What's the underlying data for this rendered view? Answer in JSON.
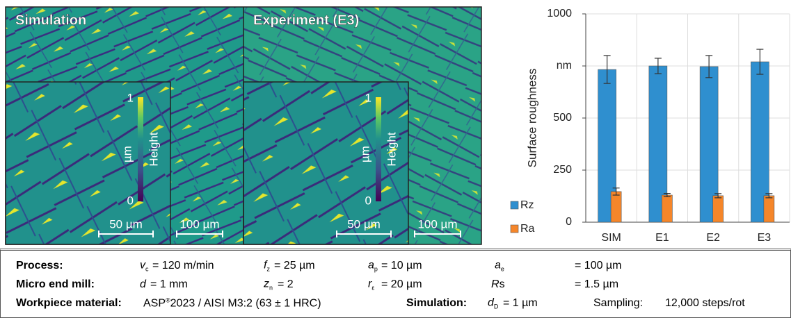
{
  "panels": [
    {
      "title": "Simulation",
      "colorbar_max": "1",
      "colorbar_min": "0",
      "colorbar_unit": "µm",
      "colorbar_label": "Height",
      "scalebar_inset": "50 µm",
      "scalebar_full": "100 µm"
    },
    {
      "title": "Experiment (E3)",
      "colorbar_max": "1",
      "colorbar_min": "0",
      "colorbar_unit": "µm",
      "colorbar_label": "Height",
      "scalebar_inset": "50 µm",
      "scalebar_full": "100 µm"
    }
  ],
  "chart_data": {
    "type": "bar",
    "y_label": "Surface roughness",
    "categories": [
      "SIM",
      "E1",
      "E2",
      "E3"
    ],
    "series": [
      {
        "name": "Rz",
        "color": "#2f8fcf",
        "values": [
          733,
          750,
          747,
          770
        ],
        "errors": [
          67,
          37,
          53,
          60
        ]
      },
      {
        "name": "Ra",
        "color": "#f5862a",
        "values": [
          147,
          130,
          127,
          127
        ],
        "errors": [
          17,
          8,
          10,
          10
        ]
      }
    ],
    "ylim": [
      0,
      1000
    ],
    "yticks": [
      0,
      250,
      500,
      {
        "value": 750,
        "label": "nm"
      },
      1000
    ],
    "grid": true,
    "legend": "bottom-left"
  },
  "table": {
    "rows": [
      [
        {
          "text": "Process:"
        },
        {
          "sym": "v",
          "sub": "c",
          "text": "= 120 m/min"
        },
        {
          "sym": "f",
          "sub": "z",
          "text": "= 25 µm"
        },
        {
          "sym": "a",
          "sub": "p",
          "text": "= 10 µm"
        },
        {
          "sym": "a",
          "sub": "e",
          "text": "= 100 µm"
        }
      ],
      [
        {
          "text": "Micro end mill:"
        },
        {
          "sym": "d",
          "text": "= 1 mm"
        },
        {
          "sym": "z",
          "sub": "n",
          "text": "= 2"
        },
        {
          "sym": "r",
          "sub": "ε",
          "text": "= 20 µm"
        },
        {
          "sym": "R",
          "sub2": "s",
          "text": "= 1.5 µm"
        }
      ],
      [
        {
          "text": "Workpiece material:"
        },
        {
          "pre": "ASP",
          "sup": "®",
          "text": "2023 / AISI M3:2 (63 ± 1 HRC)"
        },
        {
          "text": "Simulation:"
        },
        {
          "sym": "d",
          "sub": "D",
          "text": "= 1 µm"
        },
        {
          "text": "Sampling:"
        },
        {
          "text": "12,000 steps/rot"
        }
      ]
    ]
  }
}
